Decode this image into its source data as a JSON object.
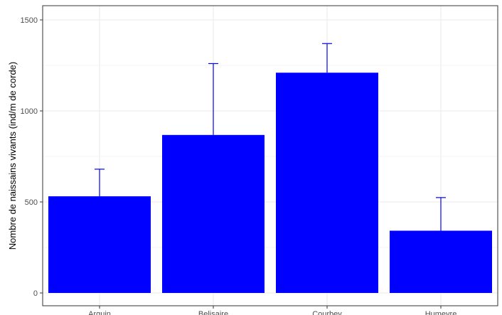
{
  "chart_data": {
    "type": "bar",
    "categories": [
      "Arguin",
      "Belisaire",
      "Courbey",
      "Humeyre"
    ],
    "values": [
      531,
      868,
      1210,
      342
    ],
    "error_upper": [
      680,
      1260,
      1370,
      524
    ],
    "ylabel": "Nombre de naissains vivants (ind/m de corde)",
    "xlabel": "",
    "ylim": [
      0,
      1580
    ],
    "yticks": [
      0,
      500,
      1000,
      1500
    ],
    "grid": true,
    "bar_color": "#0000ff",
    "error_bar_color": "#0000ff",
    "panel_border_color": "#333333",
    "grid_color": "#ebebeb"
  }
}
